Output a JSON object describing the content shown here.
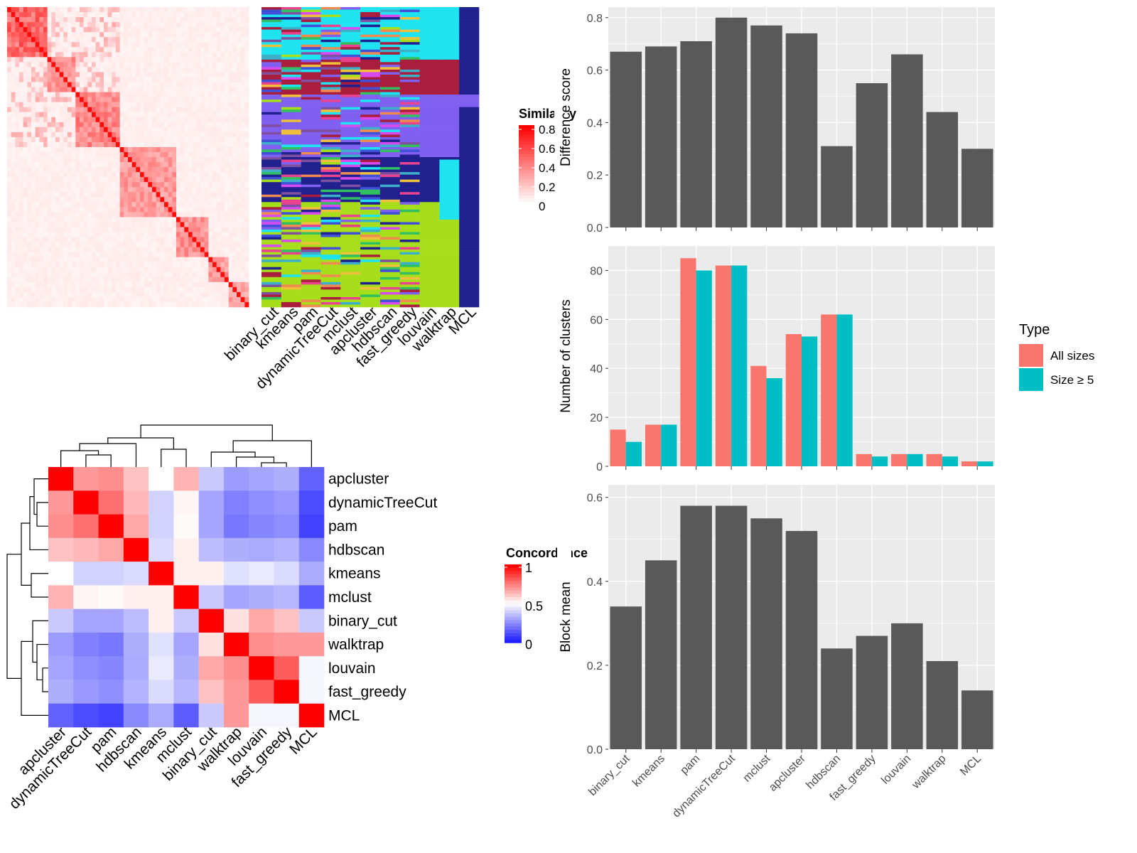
{
  "chart_data": [
    {
      "type": "heatmap",
      "id": "similarity-matrix",
      "title": "",
      "legend": {
        "title": "Similarity",
        "ticks": [
          "0.8",
          "0.6",
          "0.4",
          "0.2",
          "0"
        ],
        "color_low": "#ffffff",
        "color_high": "#ff0000",
        "placement": "right"
      }
    },
    {
      "type": "heatmap",
      "id": "cluster-labels",
      "methods": [
        "binary_cut",
        "kmeans",
        "pam",
        "dynamicTreeCut",
        "mclust",
        "apcluster",
        "hdbscan",
        "fast_greedy",
        "louvain",
        "walktrap",
        "MCL"
      ]
    },
    {
      "type": "heatmap",
      "id": "concordance",
      "legend": {
        "title": "Concordance",
        "ticks": [
          "1",
          "0.5",
          "0"
        ],
        "color_low": "#0000ff",
        "color_mid": "#ffffff",
        "color_high": "#ff0000",
        "placement": "right"
      },
      "rows": [
        "apcluster",
        "dynamicTreeCut",
        "pam",
        "hdbscan",
        "kmeans",
        "mclust",
        "binary_cut",
        "walktrap",
        "louvain",
        "fast_greedy",
        "MCL"
      ],
      "cols": [
        "apcluster",
        "dynamicTreeCut",
        "pam",
        "hdbscan",
        "kmeans",
        "mclust",
        "binary_cut",
        "walktrap",
        "louvain",
        "fast_greedy",
        "MCL"
      ],
      "values": [
        [
          1.0,
          0.7,
          0.72,
          0.62,
          0.5,
          0.65,
          0.38,
          0.28,
          0.3,
          0.32,
          0.15
        ],
        [
          0.7,
          1.0,
          0.78,
          0.64,
          0.4,
          0.52,
          0.3,
          0.22,
          0.25,
          0.27,
          0.1
        ],
        [
          0.72,
          0.78,
          1.0,
          0.67,
          0.4,
          0.51,
          0.3,
          0.2,
          0.23,
          0.25,
          0.08
        ],
        [
          0.62,
          0.64,
          0.67,
          1.0,
          0.42,
          0.53,
          0.35,
          0.32,
          0.31,
          0.33,
          0.24
        ],
        [
          0.5,
          0.4,
          0.4,
          0.42,
          1.0,
          0.53,
          0.53,
          0.43,
          0.45,
          0.42,
          0.31
        ],
        [
          0.65,
          0.52,
          0.51,
          0.53,
          0.53,
          1.0,
          0.38,
          0.3,
          0.32,
          0.34,
          0.14
        ],
        [
          0.38,
          0.3,
          0.3,
          0.35,
          0.53,
          0.38,
          1.0,
          0.56,
          0.67,
          0.62,
          0.38
        ],
        [
          0.28,
          0.22,
          0.2,
          0.32,
          0.43,
          0.3,
          0.56,
          1.0,
          0.72,
          0.7,
          0.7
        ],
        [
          0.3,
          0.25,
          0.23,
          0.31,
          0.45,
          0.32,
          0.67,
          0.72,
          1.0,
          0.82,
          0.48
        ],
        [
          0.32,
          0.27,
          0.25,
          0.33,
          0.42,
          0.34,
          0.62,
          0.7,
          0.82,
          1.0,
          0.48
        ],
        [
          0.15,
          0.1,
          0.08,
          0.24,
          0.31,
          0.14,
          0.38,
          0.7,
          0.48,
          0.48,
          1.0
        ]
      ]
    },
    {
      "type": "bar",
      "id": "difference-score",
      "ylabel": "Difference score",
      "ylim": [
        0,
        0.84
      ],
      "yticks": [
        0.0,
        0.2,
        0.4,
        0.6,
        0.8
      ],
      "categories": [
        "binary_cut",
        "kmeans",
        "pam",
        "dynamicTreeCut",
        "mclust",
        "apcluster",
        "hdbscan",
        "fast_greedy",
        "louvain",
        "walktrap",
        "MCL"
      ],
      "values": [
        0.67,
        0.69,
        0.71,
        0.8,
        0.77,
        0.74,
        0.31,
        0.55,
        0.66,
        0.44,
        0.3
      ]
    },
    {
      "type": "bar",
      "id": "number-of-clusters",
      "ylabel": "Number of clusters",
      "ylim": [
        0,
        90
      ],
      "yticks": [
        0,
        20,
        40,
        60,
        80
      ],
      "legend": {
        "title": "Type",
        "placement": "right"
      },
      "categories": [
        "binary_cut",
        "kmeans",
        "pam",
        "dynamicTreeCut",
        "mclust",
        "apcluster",
        "hdbscan",
        "fast_greedy",
        "louvain",
        "walktrap",
        "MCL"
      ],
      "series": [
        {
          "name": "All sizes",
          "color": "#f8766d",
          "values": [
            15,
            17,
            85,
            82,
            41,
            54,
            62,
            5,
            5,
            5,
            2
          ]
        },
        {
          "name": "Size ≥ 5",
          "color": "#00bfc4",
          "values": [
            10,
            17,
            80,
            82,
            36,
            53,
            62,
            4,
            5,
            4,
            2
          ]
        }
      ]
    },
    {
      "type": "bar",
      "id": "block-mean",
      "ylabel": "Block mean",
      "ylim": [
        0,
        0.63
      ],
      "yticks": [
        0.0,
        0.2,
        0.4,
        0.6
      ],
      "categories": [
        "binary_cut",
        "kmeans",
        "pam",
        "dynamicTreeCut",
        "mclust",
        "apcluster",
        "hdbscan",
        "fast_greedy",
        "louvain",
        "walktrap",
        "MCL"
      ],
      "values": [
        0.34,
        0.45,
        0.58,
        0.58,
        0.55,
        0.52,
        0.24,
        0.27,
        0.3,
        0.21,
        0.14
      ]
    }
  ]
}
